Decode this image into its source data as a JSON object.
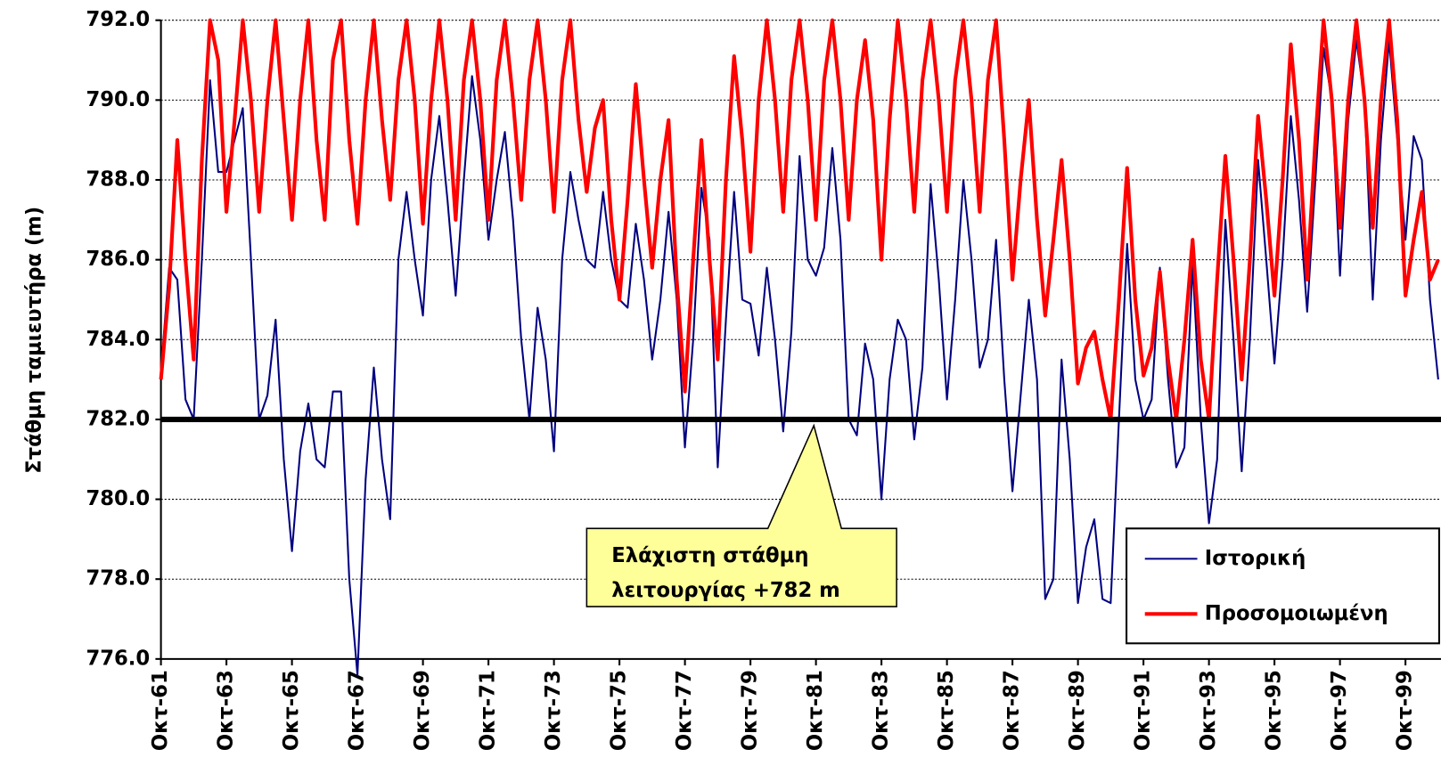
{
  "chart_data": {
    "type": "line",
    "ylabel": "Στάθμη ταμιευτήρα (m)",
    "categories": [
      "Οκτ-61",
      null,
      null,
      null,
      null,
      null,
      null,
      null,
      "Οκτ-63",
      null,
      null,
      null,
      null,
      null,
      null,
      null,
      "Οκτ-65",
      null,
      null,
      null,
      null,
      null,
      null,
      null,
      "Οκτ-67",
      null,
      null,
      null,
      null,
      null,
      null,
      null,
      "Οκτ-69",
      null,
      null,
      null,
      null,
      null,
      null,
      null,
      "Οκτ-71",
      null,
      null,
      null,
      null,
      null,
      null,
      null,
      "Οκτ-73",
      null,
      null,
      null,
      null,
      null,
      null,
      null,
      "Οκτ-75",
      null,
      null,
      null,
      null,
      null,
      null,
      null,
      "Οκτ-77",
      null,
      null,
      null,
      null,
      null,
      null,
      null,
      "Οκτ-79",
      null,
      null,
      null,
      null,
      null,
      null,
      null,
      "Οκτ-81",
      null,
      null,
      null,
      null,
      null,
      null,
      null,
      "Οκτ-83",
      null,
      null,
      null,
      null,
      null,
      null,
      null,
      "Οκτ-85",
      null,
      null,
      null,
      null,
      null,
      null,
      null,
      "Οκτ-87",
      null,
      null,
      null,
      null,
      null,
      null,
      null,
      "Οκτ-89",
      null,
      null,
      null,
      null,
      null,
      null,
      null,
      "Οκτ-91",
      null,
      null,
      null,
      null,
      null,
      null,
      null,
      "Οκτ-93",
      null,
      null,
      null,
      null,
      null,
      null,
      null,
      "Οκτ-95",
      null,
      null,
      null,
      null,
      null,
      null,
      null,
      "Οκτ-97",
      null,
      null,
      null,
      null,
      null,
      null,
      null,
      "Οκτ-99",
      null,
      null,
      null,
      null
    ],
    "series": [
      {
        "name": "Ιστορική",
        "color": "#000080",
        "width": 2,
        "values": [
          783.2,
          785.8,
          785.5,
          782.5,
          782,
          786,
          790.5,
          788.2,
          788.2,
          789,
          789.8,
          786,
          782,
          782.6,
          784.5,
          781,
          778.7,
          781.2,
          782.4,
          781,
          780.8,
          782.7,
          782.7,
          778,
          775.6,
          780.5,
          783.3,
          781,
          779.5,
          786,
          787.7,
          786,
          784.6,
          788,
          789.6,
          787.5,
          785.1,
          788,
          790.6,
          789,
          786.5,
          788,
          789.2,
          787,
          784,
          782,
          784.8,
          783.5,
          781.2,
          786,
          788.2,
          787,
          786,
          785.8,
          787.7,
          786,
          785,
          784.8,
          786.9,
          785.5,
          783.5,
          785,
          787.2,
          785,
          781.3,
          784,
          787.8,
          786.5,
          780.8,
          784.5,
          787.7,
          785,
          784.9,
          783.6,
          785.8,
          784,
          781.7,
          784.2,
          788.6,
          786,
          785.6,
          786.3,
          788.8,
          786.5,
          782,
          781.6,
          783.9,
          783,
          780,
          783,
          784.5,
          784,
          781.5,
          783.3,
          787.9,
          785.5,
          782.5,
          785,
          788,
          786,
          783.3,
          784,
          786.5,
          783,
          780.2,
          782.6,
          785,
          783,
          777.5,
          778,
          783.5,
          781,
          777.4,
          778.8,
          779.5,
          777.5,
          777.4,
          782,
          786.4,
          783,
          782,
          782.5,
          785.8,
          783,
          780.8,
          781.3,
          785.9,
          782,
          779.4,
          781,
          787,
          784,
          780.7,
          784,
          788.5,
          786,
          783.4,
          786,
          789.6,
          787.5,
          784.7,
          788,
          791.3,
          790,
          785.6,
          789.5,
          791.5,
          790,
          785,
          789,
          791.5,
          789,
          786.5,
          789.1,
          788.5,
          785,
          783
        ]
      },
      {
        "name": "Προσομοιωμένη",
        "color": "#ff0000",
        "width": 4,
        "values": [
          783,
          785.3,
          789,
          786,
          783.5,
          788.5,
          792,
          791,
          787.2,
          789.5,
          792,
          790,
          787.2,
          790,
          792,
          789.5,
          787,
          790,
          792,
          789,
          787,
          791,
          792,
          789,
          786.9,
          790,
          792,
          789.5,
          787.5,
          790.5,
          792,
          790,
          786.9,
          790,
          792,
          790,
          787,
          790.5,
          792,
          790,
          787,
          790.5,
          792,
          790,
          787.5,
          790.5,
          792,
          790,
          787.2,
          790.5,
          792,
          789.5,
          787.7,
          789.3,
          790,
          787,
          785,
          787.5,
          790.4,
          788,
          785.8,
          788,
          789.5,
          785.5,
          782.7,
          786,
          789,
          786,
          783.5,
          788,
          791.1,
          789,
          786.2,
          790,
          792,
          790,
          787.2,
          790.5,
          792,
          790,
          787,
          790.5,
          792,
          790,
          787,
          790,
          791.5,
          789.5,
          786,
          789.5,
          792,
          790,
          787.2,
          790.5,
          792,
          790,
          787.2,
          790.5,
          792,
          790,
          787.2,
          790.5,
          792,
          789,
          785.5,
          788,
          790,
          787,
          784.6,
          786.5,
          788.5,
          786,
          782.9,
          783.8,
          784.2,
          783,
          782,
          785,
          788.3,
          785,
          783.1,
          783.8,
          785.7,
          783.5,
          782,
          784,
          786.5,
          783.5,
          782,
          785.5,
          788.6,
          786,
          783,
          786,
          789.6,
          787.5,
          785.1,
          788,
          791.4,
          789,
          785.5,
          789,
          792,
          790,
          786.8,
          790,
          792,
          790,
          786.8,
          790,
          792,
          789.5,
          785.1,
          786.5,
          787.7,
          785.5,
          786
        ]
      }
    ],
    "ylim": [
      776,
      792
    ],
    "yticks": [
      {
        "value": 776,
        "label": "776.0"
      },
      {
        "value": 778,
        "label": "778.0"
      },
      {
        "value": 780,
        "label": "780.0"
      },
      {
        "value": 782,
        "label": "782.0"
      },
      {
        "value": 784,
        "label": "784.0"
      },
      {
        "value": 786,
        "label": "786.0"
      },
      {
        "value": 788,
        "label": "788.0"
      },
      {
        "value": 790,
        "label": "790.0"
      },
      {
        "value": 792,
        "label": "792.0"
      }
    ],
    "grid": true,
    "reference_line": 782,
    "annotation": [
      "Ελάχιστη στάθμη",
      "λειτουργίας +782 m"
    ],
    "legend": "lower right"
  }
}
